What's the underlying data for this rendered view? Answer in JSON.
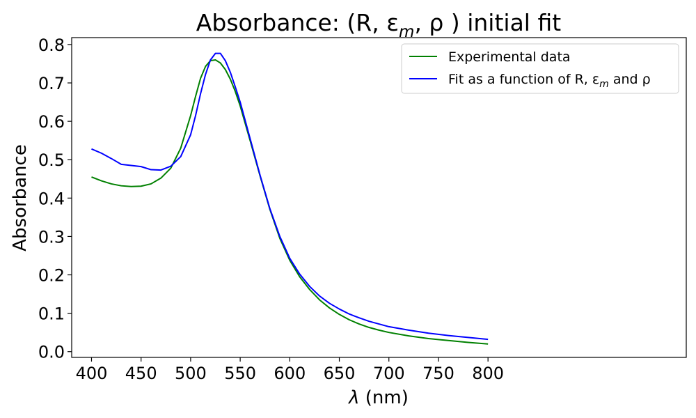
{
  "chart_data": {
    "type": "line",
    "title": "Absorbance: (R, ε",
    "title_sub": "m",
    "title_end": ", ρ ) initial fit",
    "xlabel_symbol": "λ",
    "xlabel_unit": " (nm)",
    "ylabel": "Absorbance",
    "xlim": [
      380,
      1000
    ],
    "ylim": [
      -0.015,
      0.818
    ],
    "xticks": [
      400,
      450,
      500,
      550,
      600,
      650,
      700,
      750,
      800
    ],
    "yticks": [
      0.0,
      0.1,
      0.2,
      0.3,
      0.4,
      0.5,
      0.6,
      0.7,
      0.8
    ],
    "legend_position": "top-right",
    "series": [
      {
        "name": "Experimental data",
        "color": "#008000",
        "x": [
          400,
          410,
          420,
          430,
          440,
          450,
          460,
          470,
          480,
          490,
          500,
          505,
          510,
          515,
          520,
          525,
          530,
          535,
          540,
          545,
          550,
          560,
          570,
          580,
          590,
          600,
          610,
          620,
          630,
          640,
          650,
          660,
          670,
          680,
          690,
          700,
          720,
          740,
          760,
          780,
          800
        ],
        "y": [
          0.455,
          0.445,
          0.437,
          0.432,
          0.43,
          0.431,
          0.437,
          0.452,
          0.478,
          0.53,
          0.615,
          0.665,
          0.712,
          0.743,
          0.758,
          0.76,
          0.752,
          0.735,
          0.71,
          0.678,
          0.64,
          0.55,
          0.458,
          0.37,
          0.295,
          0.238,
          0.195,
          0.162,
          0.135,
          0.114,
          0.097,
          0.083,
          0.072,
          0.063,
          0.056,
          0.05,
          0.041,
          0.034,
          0.029,
          0.024,
          0.02
        ]
      },
      {
        "name": "Fit as a function of R, ε",
        "name_sub": "m",
        "name_end": " and ρ",
        "color": "#0000ff",
        "x": [
          400,
          410,
          420,
          430,
          440,
          450,
          460,
          470,
          480,
          490,
          500,
          505,
          510,
          515,
          520,
          525,
          530,
          535,
          540,
          545,
          550,
          560,
          570,
          580,
          590,
          600,
          610,
          620,
          630,
          640,
          650,
          660,
          670,
          680,
          690,
          700,
          720,
          740,
          760,
          780,
          800
        ],
        "y": [
          0.528,
          0.517,
          0.503,
          0.488,
          0.485,
          0.482,
          0.474,
          0.473,
          0.483,
          0.508,
          0.565,
          0.615,
          0.672,
          0.722,
          0.76,
          0.777,
          0.777,
          0.758,
          0.728,
          0.69,
          0.65,
          0.555,
          0.46,
          0.372,
          0.3,
          0.243,
          0.202,
          0.17,
          0.145,
          0.126,
          0.111,
          0.098,
          0.088,
          0.079,
          0.072,
          0.065,
          0.056,
          0.048,
          0.042,
          0.037,
          0.032
        ]
      }
    ]
  }
}
